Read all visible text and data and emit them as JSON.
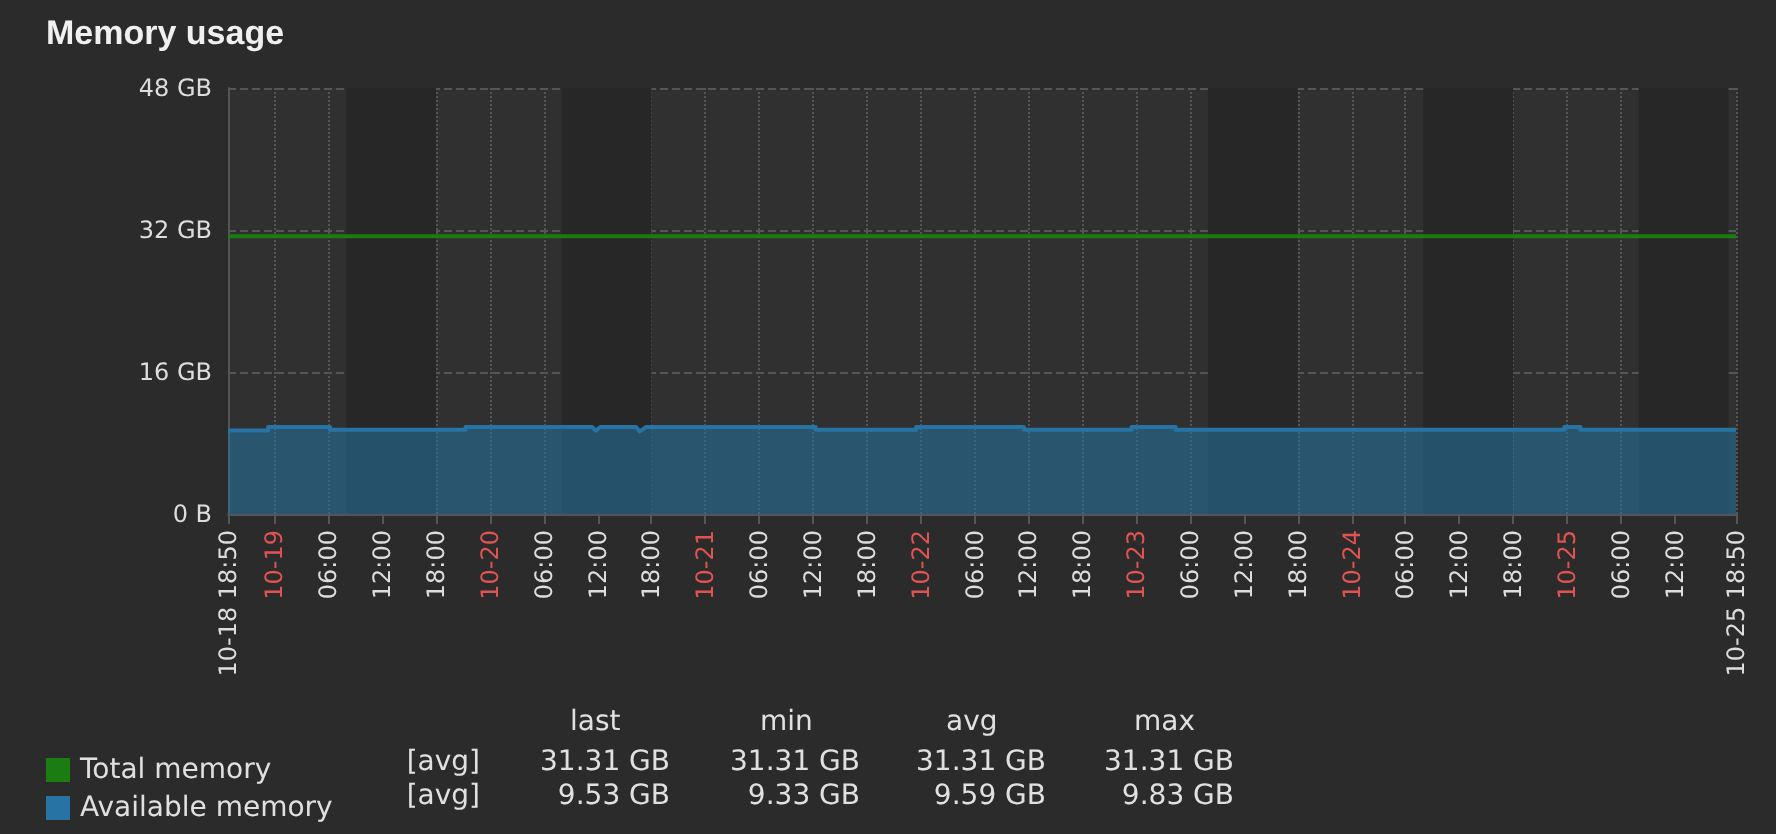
{
  "chart_data": {
    "type": "area",
    "title": "Memory usage",
    "x": [
      "--10-18T18:50",
      "--10-18T23:18",
      "--10-18T23:18",
      "--10-19T06:12",
      "--10-19T06:12",
      "--10-19T21:18",
      "--10-19T21:18",
      "--10-20T11:24",
      "--10-20T11:48",
      "--10-20T12:18",
      "--10-20T16:18",
      "--10-20T16:42",
      "--10-20T17:24",
      "--10-21T12:18",
      "--10-21T12:18",
      "--10-21T23:30",
      "--10-21T23:30",
      "--10-22T11:30",
      "--10-22T11:30",
      "--10-22T23:30",
      "--10-22T23:30",
      "--10-23T04:24",
      "--10-23T04:24",
      "--10-24T23:42",
      "--10-24T23:42",
      "--10-25T01:30",
      "--10-25T01:30",
      "--10-25T18:50"
    ],
    "series": [
      {
        "name": "Total memory",
        "type": "line",
        "color": "#1a7c11",
        "x": [
          "--10-18T18:50",
          "--10-25T18:50"
        ],
        "values": [
          31.3,
          31.3
        ]
      },
      {
        "name": "Available memory",
        "type": "area",
        "color": "#2774a4",
        "values": [
          9.4,
          9.4,
          9.8,
          9.8,
          9.5,
          9.5,
          9.8,
          9.8,
          9.4,
          9.8,
          9.8,
          9.3,
          9.8,
          9.8,
          9.5,
          9.5,
          9.8,
          9.8,
          9.5,
          9.5,
          9.8,
          9.8,
          9.5,
          9.5,
          9.8,
          9.8,
          9.5,
          9.5
        ]
      }
    ],
    "xlim": [
      "--10-18T18:50",
      "--10-25T18:50"
    ],
    "xticks": [
      {
        "value": "--10-18T18:50",
        "label": "10-18 18:50"
      },
      {
        "value": "--10-19T00:00",
        "label": "10-19"
      },
      {
        "value": "--10-19T06:00",
        "label": "06:00"
      },
      {
        "value": "--10-19T12:00",
        "label": "12:00"
      },
      {
        "value": "--10-19T18:00",
        "label": "18:00"
      },
      {
        "value": "--10-20T00:00",
        "label": "10-20"
      },
      {
        "value": "--10-20T06:00",
        "label": "06:00"
      },
      {
        "value": "--10-20T12:00",
        "label": "12:00"
      },
      {
        "value": "--10-20T18:00",
        "label": "18:00"
      },
      {
        "value": "--10-21T00:00",
        "label": "10-21"
      },
      {
        "value": "--10-21T06:00",
        "label": "06:00"
      },
      {
        "value": "--10-21T12:00",
        "label": "12:00"
      },
      {
        "value": "--10-21T18:00",
        "label": "18:00"
      },
      {
        "value": "--10-22T00:00",
        "label": "10-22"
      },
      {
        "value": "--10-22T06:00",
        "label": "06:00"
      },
      {
        "value": "--10-22T12:00",
        "label": "12:00"
      },
      {
        "value": "--10-22T18:00",
        "label": "18:00"
      },
      {
        "value": "--10-23T00:00",
        "label": "10-23"
      },
      {
        "value": "--10-23T06:00",
        "label": "06:00"
      },
      {
        "value": "--10-23T12:00",
        "label": "12:00"
      },
      {
        "value": "--10-23T18:00",
        "label": "18:00"
      },
      {
        "value": "--10-24T00:00",
        "label": "10-24"
      },
      {
        "value": "--10-24T06:00",
        "label": "06:00"
      },
      {
        "value": "--10-24T12:00",
        "label": "12:00"
      },
      {
        "value": "--10-24T18:00",
        "label": "18:00"
      },
      {
        "value": "--10-25T00:00",
        "label": "10-25"
      },
      {
        "value": "--10-25T06:00",
        "label": "06:00"
      },
      {
        "value": "--10-25T12:00",
        "label": "12:00"
      },
      {
        "value": "--10-25T18:50",
        "label": "10-25 18:50"
      }
    ],
    "ylim": [
      0,
      48
    ],
    "yticks": [
      {
        "value": 0,
        "label": "0 B"
      },
      {
        "value": 16,
        "label": "16 GB"
      },
      {
        "value": 32,
        "label": "32 GB"
      },
      {
        "value": 48,
        "label": "48 GB"
      }
    ],
    "bands": [
      {
        "axis": "x",
        "from": "--10-19T08:00",
        "to": "--10-19T18:00",
        "color": "#272727"
      },
      {
        "axis": "x",
        "from": "--10-20T08:00",
        "to": "--10-20T18:00",
        "color": "#272727"
      },
      {
        "axis": "x",
        "from": "--10-23T08:00",
        "to": "--10-23T18:00",
        "color": "#272727"
      },
      {
        "axis": "x",
        "from": "--10-24T08:00",
        "to": "--10-24T18:00",
        "color": "#272727"
      },
      {
        "axis": "x",
        "from": "--10-25T08:00",
        "to": "--10-25T18:00",
        "color": "#272727"
      }
    ],
    "grid": true,
    "marker": "none",
    "line_style": "solid",
    "legend": "bottom left",
    "annotations": [
      "last",
      "min",
      "avg",
      "max",
      "[avg]",
      "31.31 GB",
      "31.31 GB",
      "31.31 GB",
      "31.31 GB",
      "[avg]",
      "9.53 GB",
      "9.33 GB",
      "9.59 GB",
      "9.83 GB"
    ]
  }
}
